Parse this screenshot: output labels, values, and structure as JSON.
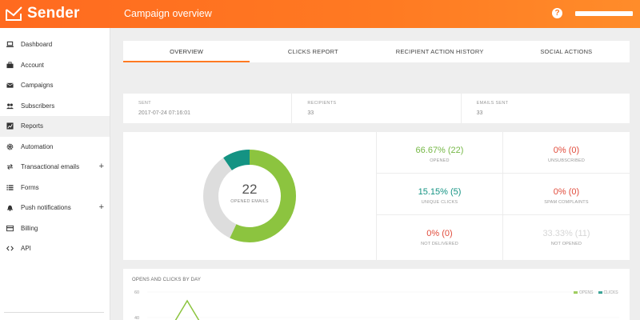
{
  "app": {
    "name": "Sender",
    "page_title": "Campaign overview"
  },
  "header": {
    "help_icon": "question-circle-icon",
    "help_glyph": "?"
  },
  "sidebar": {
    "items": [
      {
        "label": "Dashboard",
        "icon": "laptop-icon"
      },
      {
        "label": "Account",
        "icon": "briefcase-icon"
      },
      {
        "label": "Campaigns",
        "icon": "envelope-icon"
      },
      {
        "label": "Subscribers",
        "icon": "users-icon"
      },
      {
        "label": "Reports",
        "icon": "chart-icon",
        "active": true
      },
      {
        "label": "Automation",
        "icon": "gear-icon"
      },
      {
        "label": "Transactional emails",
        "icon": "arrows-icon",
        "expand": "+"
      },
      {
        "label": "Forms",
        "icon": "list-icon"
      },
      {
        "label": "Push notifications",
        "icon": "bell-icon",
        "expand": "+"
      },
      {
        "label": "Billing",
        "icon": "credit-card-icon"
      },
      {
        "label": "API",
        "icon": "code-icon"
      }
    ]
  },
  "tabs": [
    "OVERVIEW",
    "CLICKS REPORT",
    "RECIPIENT ACTION HISTORY",
    "SOCIAL ACTIONS"
  ],
  "info": {
    "sent": {
      "label": "SENT",
      "value": "2017-07-24 07:16:01"
    },
    "recipients": {
      "label": "RECIPIENTS",
      "value": "33"
    },
    "emails_sent": {
      "label": "EMAILS SENT",
      "value": "33"
    }
  },
  "donut": {
    "value": "22",
    "label": "OPENED EMAILS",
    "segments": [
      {
        "name": "opened",
        "fraction": 0.5694,
        "color": "#8cc43f"
      },
      {
        "name": "not-opened",
        "fraction": 0.3333,
        "color": "#dddddd"
      },
      {
        "name": "clicked",
        "fraction": 0.0973,
        "color": "#149383"
      }
    ]
  },
  "stats": {
    "opened": {
      "value": "66.67% (22)",
      "label": "OPENED"
    },
    "unsubscribed": {
      "value": "0% (0)",
      "label": "UNSUBSCRIBED"
    },
    "unique_clicks": {
      "value": "15.15% (5)",
      "label": "UNIQUE CLICKS"
    },
    "spam": {
      "value": "0% (0)",
      "label": "SPAM COMPLAINTS"
    },
    "not_delivered": {
      "value": "0% (0)",
      "label": "NOT DELIVERED"
    },
    "not_opened": {
      "value": "33.33% (11)",
      "label": "NOT OPENED"
    }
  },
  "chart": {
    "title": "OPENS AND CLICKS BY DAY",
    "legend": {
      "opens": "OPENS",
      "clicks": "CLICKS"
    },
    "colors": {
      "opens": "#8cc43f",
      "clicks": "#149383"
    }
  },
  "chart_data": {
    "type": "line",
    "title": "OPENS AND CLICKS BY DAY",
    "y_ticks": [
      "60",
      "40"
    ],
    "series": [
      {
        "name": "OPENS",
        "peak": 58
      },
      {
        "name": "CLICKS"
      }
    ]
  }
}
